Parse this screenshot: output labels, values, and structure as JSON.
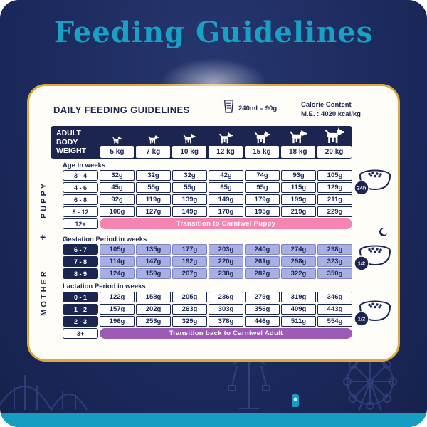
{
  "page": {
    "title": "Feeding Guidelines"
  },
  "card": {
    "heading": "DAILY FEEDING GUIDELINES",
    "measure_note": "240ml = 90g",
    "calorie_label": "Calorie Content",
    "calorie_value": "M.E. : 4020 kcal/kg",
    "weight_header": {
      "label": "Adult Body Weight",
      "weights": [
        "5 kg",
        "7 kg",
        "10 kg",
        "12 kg",
        "15 kg",
        "18 kg",
        "20 kg"
      ]
    }
  },
  "sections": {
    "puppy": {
      "label": "PUPPY",
      "subheading": "Age in weeks",
      "bowl_badge": "24h",
      "rows": [
        {
          "label": "3 - 4",
          "values": [
            "32g",
            "32g",
            "32g",
            "42g",
            "74g",
            "93g",
            "105g"
          ]
        },
        {
          "label": "4 - 6",
          "values": [
            "45g",
            "55g",
            "55g",
            "65g",
            "95g",
            "115g",
            "129g"
          ]
        },
        {
          "label": "6 - 8",
          "values": [
            "92g",
            "119g",
            "139g",
            "149g",
            "179g",
            "199g",
            "211g"
          ]
        },
        {
          "label": "8 - 12",
          "values": [
            "100g",
            "127g",
            "149g",
            "170g",
            "195g",
            "219g",
            "229g"
          ]
        },
        {
          "label": "12+",
          "transition": "Transition to Carniwel Puppy"
        }
      ]
    },
    "mother": {
      "label": "MOTHER",
      "plus": "+",
      "gestation": {
        "subheading": "Gestation Period in weeks",
        "bowl_badge": "1/2",
        "rows": [
          {
            "label": "6 - 7",
            "values": [
              "105g",
              "135g",
              "177g",
              "203g",
              "240g",
              "274g",
              "298g"
            ]
          },
          {
            "label": "7 - 8",
            "values": [
              "114g",
              "147g",
              "192g",
              "220g",
              "261g",
              "298g",
              "323g"
            ]
          },
          {
            "label": "8 - 9",
            "values": [
              "124g",
              "159g",
              "207g",
              "238g",
              "282g",
              "322g",
              "350g"
            ]
          }
        ]
      },
      "lactation": {
        "subheading": "Lactation Period in weeks",
        "bowl_badge": "1/2",
        "rows": [
          {
            "label": "0 - 1",
            "values": [
              "122g",
              "158g",
              "205g",
              "236g",
              "279g",
              "319g",
              "346g"
            ]
          },
          {
            "label": "1 - 2",
            "values": [
              "157g",
              "202g",
              "263g",
              "303g",
              "356g",
              "409g",
              "443g"
            ]
          },
          {
            "label": "2 - 3",
            "values": [
              "196g",
              "253g",
              "329g",
              "378g",
              "446g",
              "511g",
              "554g"
            ]
          },
          {
            "label": "3+",
            "transition": "Transition back to Carniwel Adult"
          }
        ]
      }
    }
  },
  "icons": {
    "measuring_cup": "measuring-cup-icon",
    "dog": "dog-silhouette-icon",
    "bowl": "food-bowl-icon",
    "moon": "moon-icon",
    "ferris_wheel": "ferris-wheel-icon",
    "carousel": "carousel-icon",
    "roller_coaster": "roller-coaster-icon",
    "lantern": "lantern-icon"
  },
  "colors": {
    "background_navy": "#1c2a5e",
    "ink_navy": "#1b2550",
    "title_teal": "#18a0c6",
    "card_gold_border": "#dca93e",
    "puppy_transition_pink": "#f584b0",
    "adult_transition_purple": "#9c5cb5",
    "gestation_cell_periwinkle": "#a9afe2",
    "bottom_bar_teal": "#189dc2"
  }
}
